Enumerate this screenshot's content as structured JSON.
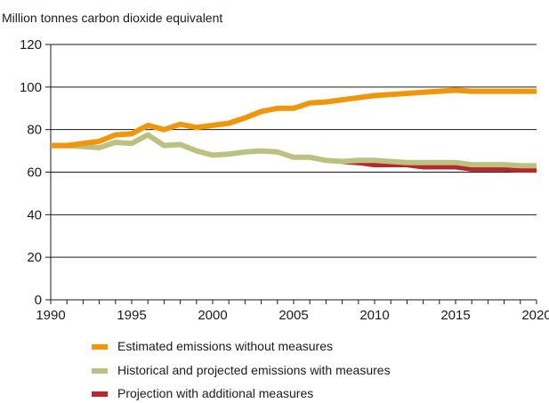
{
  "chart_data": {
    "type": "line",
    "ylabel": "Million tonnes carbon dioxide equivalent",
    "xlim": [
      1990,
      2020
    ],
    "ylim": [
      0,
      120
    ],
    "x_ticks": [
      1990,
      1995,
      2000,
      2005,
      2010,
      2015,
      2020
    ],
    "y_ticks": [
      0,
      20,
      40,
      60,
      80,
      100,
      120
    ],
    "grid": "horizontal",
    "legend_position": "bottom",
    "series": [
      {
        "name": "Estimated emissions without measures",
        "color": "#f0960a",
        "x": [
          1990,
          1991,
          1992,
          1993,
          1994,
          1995,
          1996,
          1997,
          1998,
          1999,
          2000,
          2001,
          2002,
          2003,
          2004,
          2005,
          2006,
          2007,
          2008,
          2009,
          2010,
          2011,
          2012,
          2013,
          2014,
          2015,
          2016,
          2017,
          2018,
          2019,
          2020
        ],
        "values": [
          72.5,
          72.5,
          73.5,
          74.5,
          77.5,
          78,
          82,
          80,
          82.5,
          81,
          82,
          83,
          85.5,
          88.5,
          90,
          90,
          92.5,
          93,
          94,
          95,
          96,
          96.5,
          97,
          97.5,
          98,
          98.5,
          98,
          98,
          98,
          98,
          98
        ]
      },
      {
        "name": "Historical and projected emissions with measures",
        "color": "#bcc080",
        "x": [
          1990,
          1991,
          1992,
          1993,
          1994,
          1995,
          1996,
          1997,
          1998,
          1999,
          2000,
          2001,
          2002,
          2003,
          2004,
          2005,
          2006,
          2007,
          2008,
          2009,
          2010,
          2011,
          2012,
          2013,
          2014,
          2015,
          2016,
          2017,
          2018,
          2019,
          2020
        ],
        "values": [
          72.5,
          72.5,
          72,
          71.5,
          74,
          73.5,
          77.5,
          72.5,
          73,
          70,
          68,
          68.5,
          69.5,
          70,
          69.5,
          67,
          67,
          65.5,
          65,
          65.5,
          65.5,
          65,
          64.5,
          64.5,
          64.5,
          64.5,
          63.5,
          63.5,
          63.5,
          63,
          63
        ]
      },
      {
        "name": "Projection with additional measures",
        "color": "#b5282e",
        "x": [
          2008,
          2009,
          2010,
          2011,
          2012,
          2013,
          2014,
          2015,
          2016,
          2017,
          2018,
          2019,
          2020
        ],
        "values": [
          65,
          64.5,
          63.5,
          63.5,
          63.5,
          62.5,
          62.5,
          62.5,
          61.5,
          61.5,
          61.5,
          61,
          61
        ]
      }
    ]
  }
}
